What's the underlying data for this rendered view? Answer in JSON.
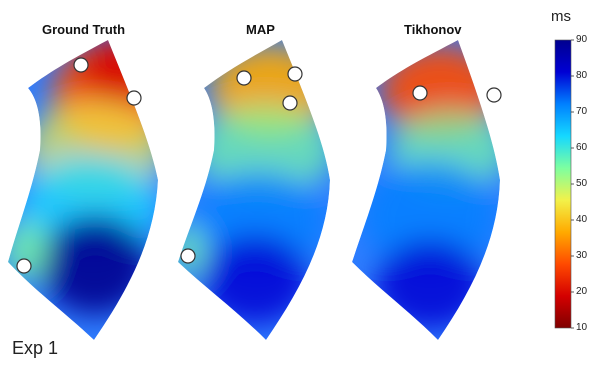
{
  "experiment_label": "Exp 1",
  "colorbar": {
    "unit": "ms",
    "min": 10,
    "max": 90,
    "ticks": [
      "90",
      "80",
      "70",
      "60",
      "50",
      "40",
      "30",
      "20",
      "10"
    ],
    "colors": [
      "#7f0000",
      "#d40000",
      "#ff4a00",
      "#ffaa00",
      "#f2f24a",
      "#7dffa0",
      "#15d8ff",
      "#0080ff",
      "#0000d4",
      "#00008f"
    ]
  },
  "panels": [
    {
      "title": "Ground Truth",
      "markers": 3
    },
    {
      "title": "MAP",
      "markers": 4
    },
    {
      "title": "Tikhonov",
      "markers": 2
    }
  ]
}
